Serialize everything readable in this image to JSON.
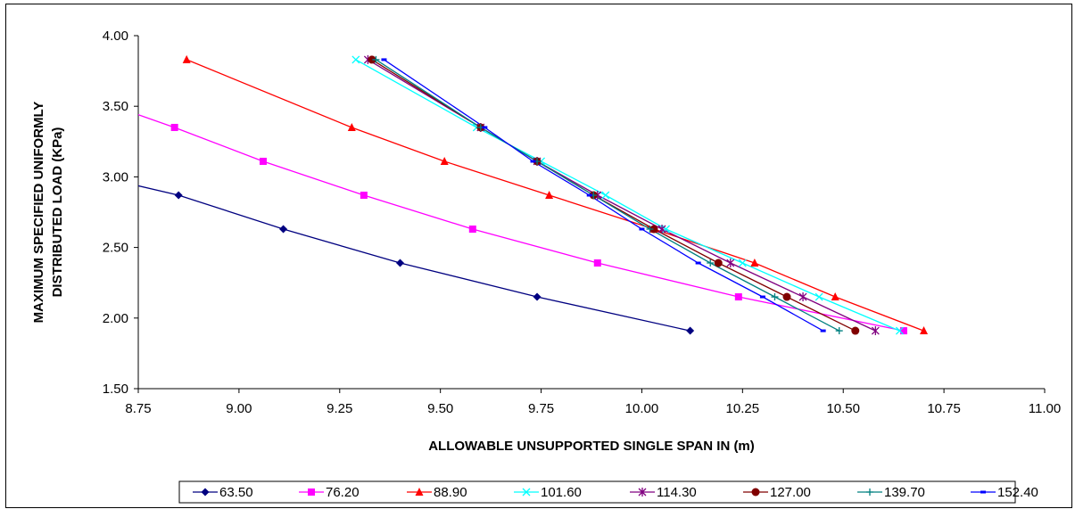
{
  "chart_data": {
    "type": "line",
    "title": "",
    "xlabel": "ALLOWABLE UNSUPPORTED SINGLE SPAN IN (m)",
    "ylabel_lines": [
      "MAXIMUM SPECIFIED UNIFORMLY",
      "DISTRIBUTED LOAD (KPa)"
    ],
    "xlim": [
      8.75,
      11.0
    ],
    "ylim": [
      1.5,
      4.0
    ],
    "x_ticks": [
      "8.75",
      "9.00",
      "9.25",
      "9.50",
      "9.75",
      "10.00",
      "10.25",
      "10.50",
      "10.75",
      "11.00"
    ],
    "y_ticks": [
      "4.00",
      "3.50",
      "3.00",
      "2.50",
      "2.00",
      "1.50"
    ],
    "grid": false,
    "legend_position": "bottom",
    "series": [
      {
        "name": "63.50",
        "color": "#000080",
        "marker": "diamond",
        "points": [
          [
            8.7,
            2.97
          ],
          [
            8.85,
            2.87
          ],
          [
            9.11,
            2.63
          ],
          [
            9.4,
            2.39
          ],
          [
            9.74,
            2.15
          ],
          [
            10.12,
            1.91
          ]
        ]
      },
      {
        "name": "76.20",
        "color": "#FF00FF",
        "marker": "square",
        "points": [
          [
            8.72,
            3.47
          ],
          [
            8.84,
            3.35
          ],
          [
            9.06,
            3.11
          ],
          [
            9.31,
            2.87
          ],
          [
            9.58,
            2.63
          ],
          [
            9.89,
            2.39
          ],
          [
            10.24,
            2.15
          ],
          [
            10.65,
            1.91
          ]
        ]
      },
      {
        "name": "88.90",
        "color": "#FF0000",
        "marker": "triangle",
        "points": [
          [
            8.87,
            3.83
          ],
          [
            9.28,
            3.35
          ],
          [
            9.51,
            3.11
          ],
          [
            9.77,
            2.87
          ],
          [
            10.03,
            2.63
          ],
          [
            10.28,
            2.39
          ],
          [
            10.48,
            2.15
          ],
          [
            10.7,
            1.91
          ]
        ]
      },
      {
        "name": "101.60",
        "color": "#00FFFF",
        "marker": "x",
        "points": [
          [
            9.29,
            3.83
          ],
          [
            9.59,
            3.35
          ],
          [
            9.75,
            3.11
          ],
          [
            9.91,
            2.87
          ],
          [
            10.06,
            2.63
          ],
          [
            10.25,
            2.39
          ],
          [
            10.44,
            2.15
          ],
          [
            10.64,
            1.91
          ]
        ]
      },
      {
        "name": "114.30",
        "color": "#800080",
        "marker": "star",
        "points": [
          [
            9.32,
            3.83
          ],
          [
            9.6,
            3.35
          ],
          [
            9.74,
            3.11
          ],
          [
            9.89,
            2.87
          ],
          [
            10.05,
            2.63
          ],
          [
            10.22,
            2.39
          ],
          [
            10.4,
            2.15
          ],
          [
            10.58,
            1.91
          ]
        ]
      },
      {
        "name": "127.00",
        "color": "#800000",
        "marker": "circle",
        "points": [
          [
            9.33,
            3.83
          ],
          [
            9.6,
            3.35
          ],
          [
            9.74,
            3.11
          ],
          [
            9.88,
            2.87
          ],
          [
            10.03,
            2.63
          ],
          [
            10.19,
            2.39
          ],
          [
            10.36,
            2.15
          ],
          [
            10.53,
            1.91
          ]
        ]
      },
      {
        "name": "139.70",
        "color": "#008080",
        "marker": "plus",
        "points": [
          [
            9.34,
            3.83
          ],
          [
            9.6,
            3.35
          ],
          [
            9.74,
            3.11
          ],
          [
            9.88,
            2.87
          ],
          [
            10.02,
            2.63
          ],
          [
            10.17,
            2.39
          ],
          [
            10.33,
            2.15
          ],
          [
            10.49,
            1.91
          ]
        ]
      },
      {
        "name": "152.40",
        "color": "#0000FF",
        "marker": "dash",
        "points": [
          [
            9.36,
            3.83
          ],
          [
            9.61,
            3.35
          ],
          [
            9.73,
            3.11
          ],
          [
            9.87,
            2.87
          ],
          [
            10.0,
            2.63
          ],
          [
            10.14,
            2.39
          ],
          [
            10.3,
            2.15
          ],
          [
            10.45,
            1.91
          ]
        ]
      }
    ]
  }
}
